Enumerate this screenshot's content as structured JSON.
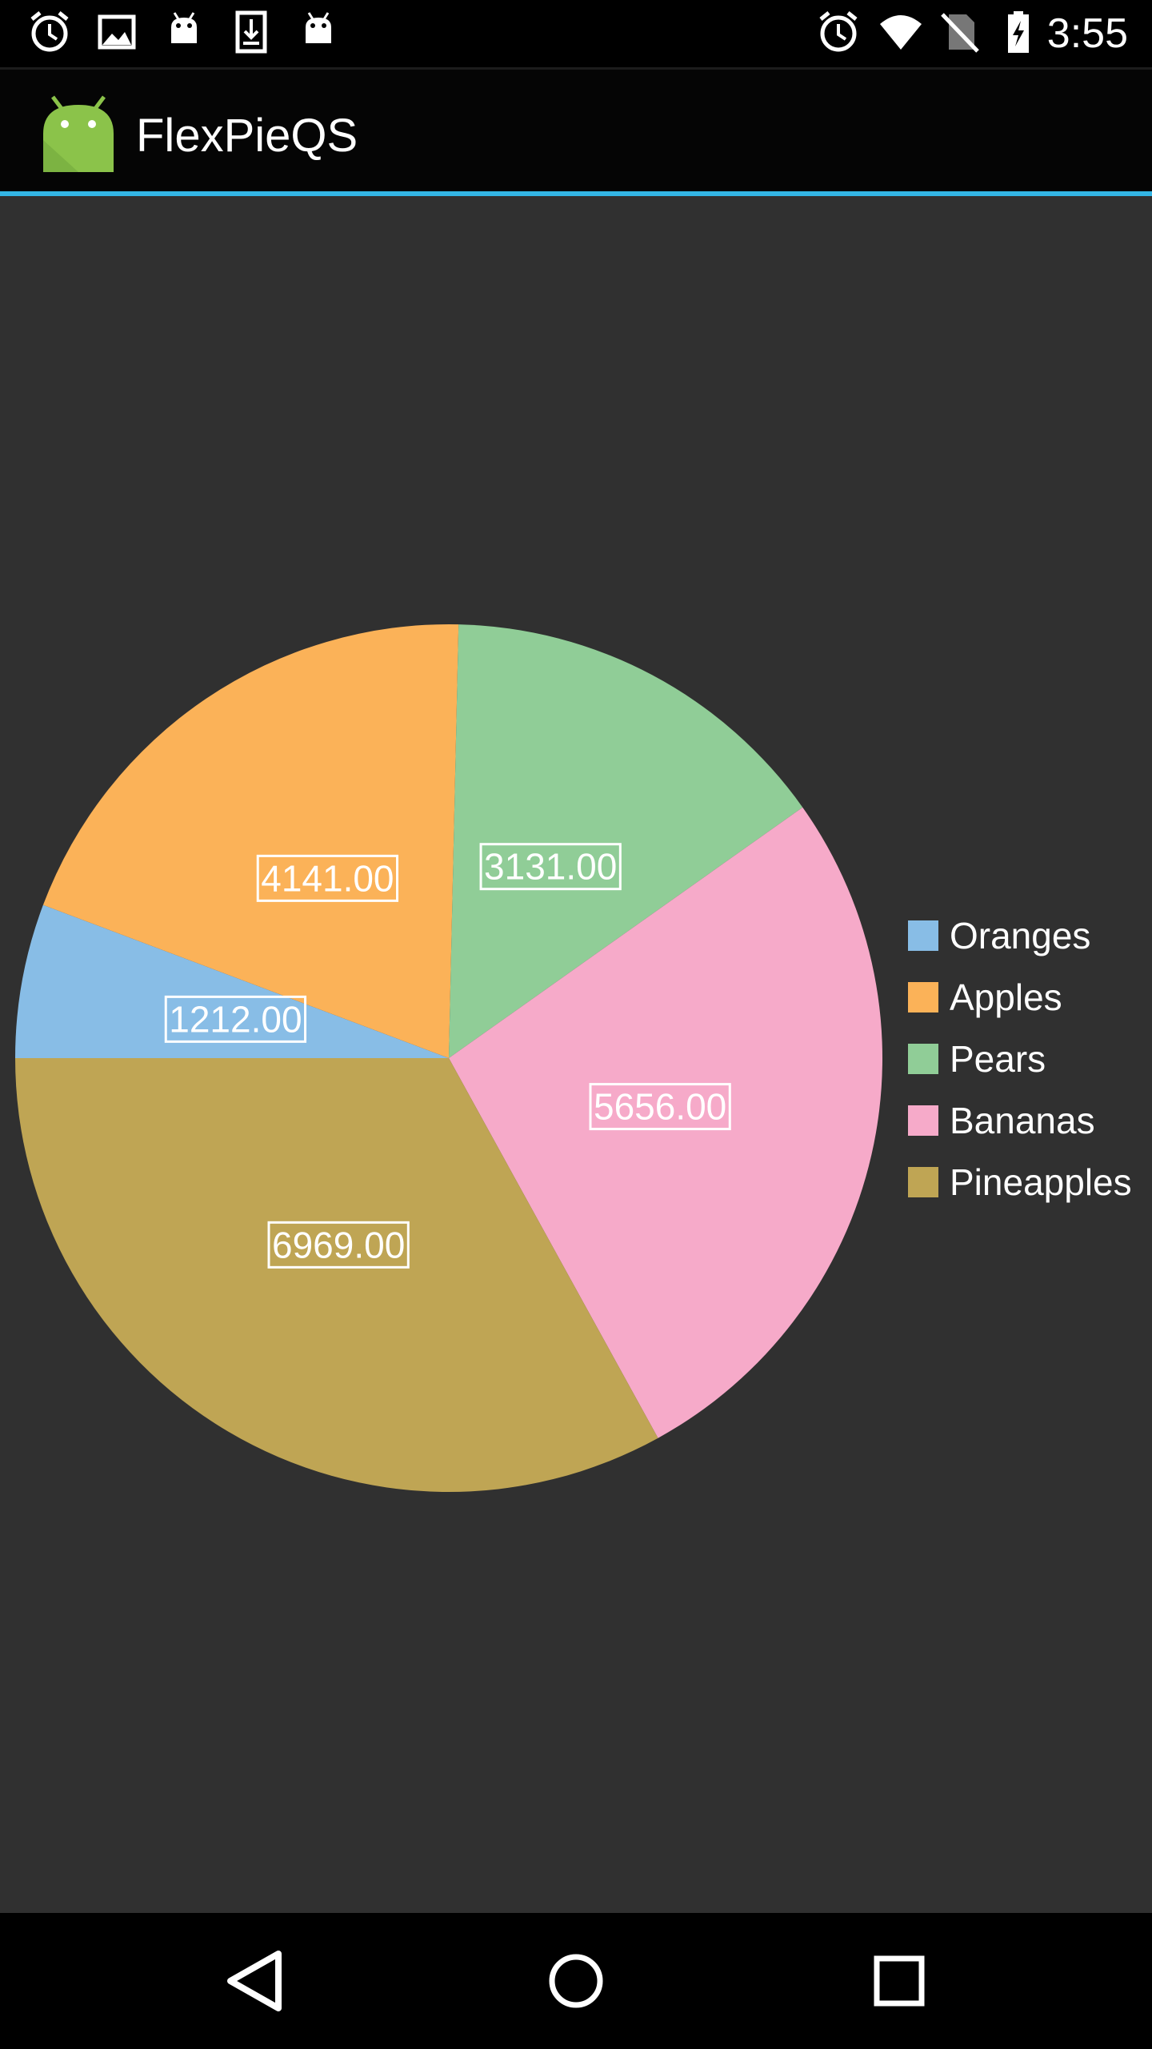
{
  "status_bar": {
    "time": "3:55",
    "left_icons": [
      "alarm-icon",
      "image-icon",
      "android-icon",
      "download-icon",
      "android-icon"
    ],
    "right_icons": [
      "alarm-icon",
      "wifi-icon",
      "no-sim-icon",
      "battery-charging-icon"
    ]
  },
  "app_bar": {
    "title": "FlexPieQS",
    "accent_color": "#33b5e5"
  },
  "chart_data": {
    "type": "pie",
    "categories": [
      "Oranges",
      "Apples",
      "Pears",
      "Bananas",
      "Pineapples"
    ],
    "values": [
      1212,
      4141,
      3131,
      5656,
      6969
    ],
    "data_labels": [
      "1212.00",
      "4141.00",
      "3131.00",
      "5656.00",
      "6969.00"
    ],
    "colors": [
      "#88bde6",
      "#fbb258",
      "#90cd97",
      "#f6aac9",
      "#bfa554"
    ],
    "legend_position": "right",
    "start_angle_deg": 180,
    "direction": "clockwise"
  },
  "nav_bar": {
    "buttons": [
      "back-icon",
      "home-icon",
      "recents-icon"
    ]
  }
}
